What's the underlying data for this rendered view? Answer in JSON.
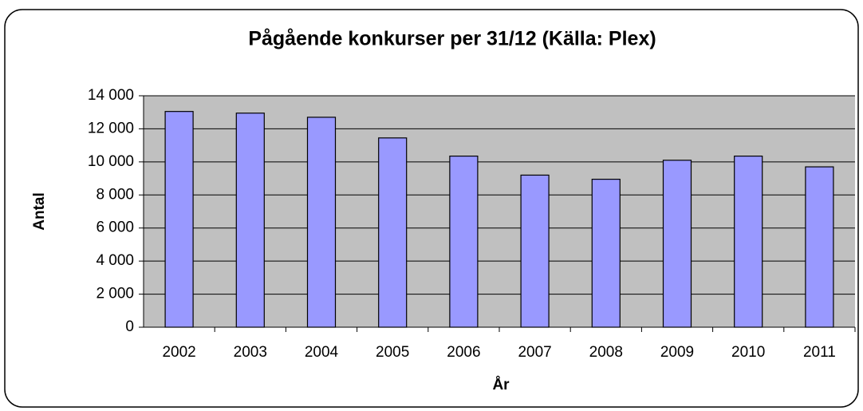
{
  "chart_data": {
    "type": "bar",
    "title": "Pågående konkurser per 31/12 (Källa: Plex)",
    "x_label": "År",
    "y_label": "Antal",
    "categories": [
      "2002",
      "2003",
      "2004",
      "2005",
      "2006",
      "2007",
      "2008",
      "2009",
      "2010",
      "2011"
    ],
    "values": [
      13050,
      12950,
      12700,
      11450,
      10350,
      9200,
      8950,
      10100,
      10350,
      9700
    ],
    "color": "#9999ff",
    "ylim": [
      0,
      14000
    ],
    "yticks": [
      0,
      {
        "value": 2000,
        "label": "2 000"
      },
      {
        "value": 4000,
        "label": "4 000"
      },
      {
        "value": 6000,
        "label": "6 000"
      },
      {
        "value": 8000,
        "label": "8 000"
      },
      {
        "value": 10000,
        "label": "10 000"
      },
      {
        "value": 12000,
        "label": "12 000"
      },
      {
        "value": 14000,
        "label": "14 000"
      }
    ],
    "grid": true
  }
}
